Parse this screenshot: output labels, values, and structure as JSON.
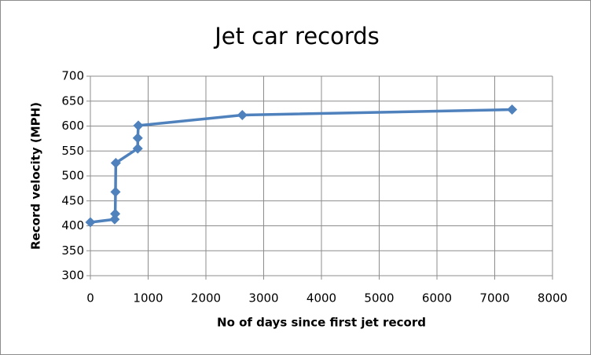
{
  "chart_data": {
    "type": "line",
    "title": "Jet car records",
    "x_label": "No of days since first jet record",
    "y_label": "Record velocity (MPH)",
    "series": [
      {
        "name": "Record velocity",
        "color": "#4f81bd",
        "x": [
          0,
          420,
          430,
          435,
          440,
          820,
          820,
          830,
          2630,
          7300
        ],
        "values": [
          407,
          413,
          424,
          468,
          526,
          555,
          576,
          601,
          622,
          633
        ]
      }
    ],
    "xlim": [
      0,
      8000
    ],
    "xticks": [
      0,
      1000,
      2000,
      3000,
      4000,
      5000,
      6000,
      7000,
      8000
    ],
    "ylim": [
      300,
      700
    ],
    "yticks": [
      300,
      350,
      400,
      450,
      500,
      550,
      600,
      650,
      700
    ],
    "grid": true
  }
}
